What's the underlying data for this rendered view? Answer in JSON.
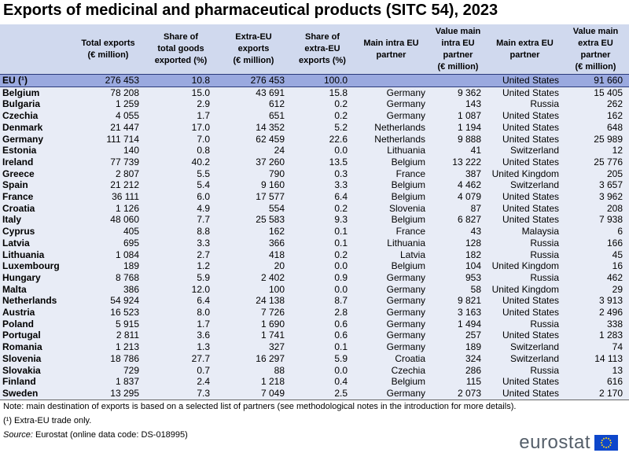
{
  "title": "Exports of medicinal and pharmaceutical products (SITC 54), 2023",
  "columns": [
    "",
    "Total exports\n(€ million)",
    "Share of\ntotal goods\nexported (%)",
    "Extra-EU\nexports\n(€ million)",
    "Share of\nextra-EU\nexports (%)",
    "Main intra EU\npartner",
    "Value main\nintra EU\npartner\n(€ million)",
    "Main extra EU\npartner",
    "Value main\nextra EU\npartner\n(€ million)"
  ],
  "rows": [
    [
      "EU (¹)",
      "276 453",
      "10.8",
      "276 453",
      "100.0",
      "",
      "",
      "United States",
      "91 660"
    ],
    [
      "Belgium",
      "78 208",
      "15.0",
      "43 691",
      "15.8",
      "Germany",
      "9 362",
      "United States",
      "15 405"
    ],
    [
      "Bulgaria",
      "1 259",
      "2.9",
      "612",
      "0.2",
      "Germany",
      "143",
      "Russia",
      "262"
    ],
    [
      "Czechia",
      "4 055",
      "1.7",
      "651",
      "0.2",
      "Germany",
      "1 087",
      "United States",
      "162"
    ],
    [
      "Denmark",
      "21 447",
      "17.0",
      "14 352",
      "5.2",
      "Netherlands",
      "1 194",
      "United States",
      "648"
    ],
    [
      "Germany",
      "111 714",
      "7.0",
      "62 459",
      "22.6",
      "Netherlands",
      "9 888",
      "United States",
      "25 989"
    ],
    [
      "Estonia",
      "140",
      "0.8",
      "24",
      "0.0",
      "Lithuania",
      "41",
      "Switzerland",
      "12"
    ],
    [
      "Ireland",
      "77 739",
      "40.2",
      "37 260",
      "13.5",
      "Belgium",
      "13 222",
      "United States",
      "25 776"
    ],
    [
      "Greece",
      "2 807",
      "5.5",
      "790",
      "0.3",
      "France",
      "387",
      "United Kingdom",
      "205"
    ],
    [
      "Spain",
      "21 212",
      "5.4",
      "9 160",
      "3.3",
      "Belgium",
      "4 462",
      "Switzerland",
      "3 657"
    ],
    [
      "France",
      "36 111",
      "6.0",
      "17 577",
      "6.4",
      "Belgium",
      "4 079",
      "United States",
      "3 962"
    ],
    [
      "Croatia",
      "1 126",
      "4.9",
      "554",
      "0.2",
      "Slovenia",
      "87",
      "United States",
      "208"
    ],
    [
      "Italy",
      "48 060",
      "7.7",
      "25 583",
      "9.3",
      "Belgium",
      "6 827",
      "United States",
      "7 938"
    ],
    [
      "Cyprus",
      "405",
      "8.8",
      "162",
      "0.1",
      "France",
      "43",
      "Malaysia",
      "6"
    ],
    [
      "Latvia",
      "695",
      "3.3",
      "366",
      "0.1",
      "Lithuania",
      "128",
      "Russia",
      "166"
    ],
    [
      "Lithuania",
      "1 084",
      "2.7",
      "418",
      "0.2",
      "Latvia",
      "182",
      "Russia",
      "45"
    ],
    [
      "Luxembourg",
      "189",
      "1.2",
      "20",
      "0.0",
      "Belgium",
      "104",
      "United Kingdom",
      "16"
    ],
    [
      "Hungary",
      "8 768",
      "5.9",
      "2 402",
      "0.9",
      "Germany",
      "953",
      "Russia",
      "462"
    ],
    [
      "Malta",
      "386",
      "12.0",
      "100",
      "0.0",
      "Germany",
      "58",
      "United Kingdom",
      "29"
    ],
    [
      "Netherlands",
      "54 924",
      "6.4",
      "24 138",
      "8.7",
      "Germany",
      "9 821",
      "United States",
      "3 913"
    ],
    [
      "Austria",
      "16 523",
      "8.0",
      "7 726",
      "2.8",
      "Germany",
      "3 163",
      "United States",
      "2 496"
    ],
    [
      "Poland",
      "5 915",
      "1.7",
      "1 690",
      "0.6",
      "Germany",
      "1 494",
      "Russia",
      "338"
    ],
    [
      "Portugal",
      "2 811",
      "3.6",
      "1 741",
      "0.6",
      "Germany",
      "257",
      "United States",
      "1 283"
    ],
    [
      "Romania",
      "1 213",
      "1.3",
      "327",
      "0.1",
      "Germany",
      "189",
      "Switzerland",
      "74"
    ],
    [
      "Slovenia",
      "18 786",
      "27.7",
      "16 297",
      "5.9",
      "Croatia",
      "324",
      "Switzerland",
      "14 113"
    ],
    [
      "Slovakia",
      "729",
      "0.7",
      "88",
      "0.0",
      "Czechia",
      "286",
      "Russia",
      "13"
    ],
    [
      "Finland",
      "1 837",
      "2.4",
      "1 218",
      "0.4",
      "Belgium",
      "115",
      "United States",
      "616"
    ],
    [
      "Sweden",
      "13 295",
      "7.3",
      "7 049",
      "2.5",
      "Germany",
      "2 073",
      "United States",
      "2 170"
    ]
  ],
  "notes": {
    "note1": "Note: main destination of exports is based on a selected list of partners (see methodological notes in the introduction for more details).",
    "note2": "(¹) Extra-EU trade only.",
    "source_label": "Source:",
    "source_text": " Eurostat (online data code: DS-018995)"
  },
  "logo": {
    "text": "eurostat",
    "flag_color": "#0e47cb",
    "star_color": "#ffd617"
  },
  "colors": {
    "header_bg": "#d0d9ee",
    "row_bg": "#e8ecf6",
    "eu_row_bg": "#9aa9df"
  }
}
